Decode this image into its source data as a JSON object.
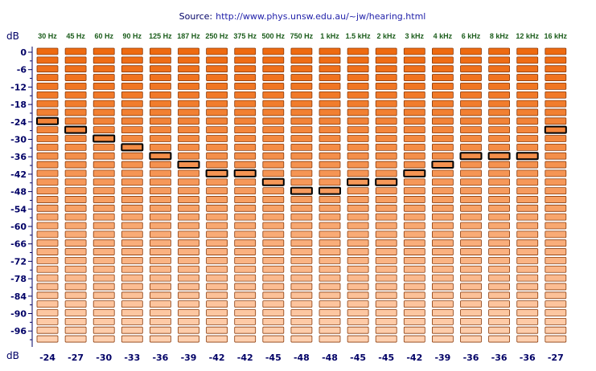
{
  "source": {
    "label": "Source:",
    "url": "http://www.phys.unsw.edu.au/~jw/hearing.html"
  },
  "axis_unit_top": "dB",
  "axis_unit_bottom": "dB",
  "colors": {
    "bar_loud": "#ee6a10",
    "bar_quiet": "#ffd0b0",
    "bar_border": "#8a3a0a",
    "highlight_border": "#000000",
    "text": "#000066",
    "freq_text": "#1a5c1a"
  },
  "chart_data": {
    "type": "table",
    "frequencies": [
      "30 Hz",
      "45 Hz",
      "60 Hz",
      "90 Hz",
      "125 Hz",
      "187 Hz",
      "250 Hz",
      "375 Hz",
      "500 Hz",
      "750 Hz",
      "1 kHz",
      "1.5 kHz",
      "2 kHz",
      "3 kHz",
      "4 kHz",
      "6 kHz",
      "8 kHz",
      "12 kHz",
      "16 kHz"
    ],
    "levels": [
      0,
      -3,
      -6,
      -9,
      -12,
      -15,
      -18,
      -21,
      -24,
      -27,
      -30,
      -33,
      -36,
      -39,
      -42,
      -45,
      -48,
      -51,
      -54,
      -57,
      -60,
      -63,
      -66,
      -69,
      -72,
      -75,
      -78,
      -81,
      -84,
      -87,
      -90,
      -93,
      -96,
      -99
    ],
    "y_tick_labels": [
      "0",
      "-6",
      "-12",
      "-18",
      "-24",
      "-30",
      "-36",
      "-42",
      "-48",
      "-54",
      "-60",
      "-66",
      "-72",
      "-78",
      "-84",
      "-90",
      "-96"
    ],
    "thresholds": [
      -24,
      -27,
      -30,
      -33,
      -36,
      -39,
      -42,
      -42,
      -45,
      -48,
      -48,
      -45,
      -45,
      -42,
      -39,
      -36,
      -36,
      -36,
      -27
    ],
    "threshold_labels": [
      "-24",
      "-27",
      "-30",
      "-33",
      "-36",
      "-39",
      "-42",
      "-42",
      "-45",
      "-48",
      "-48",
      "-45",
      "-45",
      "-42",
      "-39",
      "-36",
      "-36",
      "-36",
      "-27"
    ],
    "ylim": [
      -99,
      0
    ]
  }
}
